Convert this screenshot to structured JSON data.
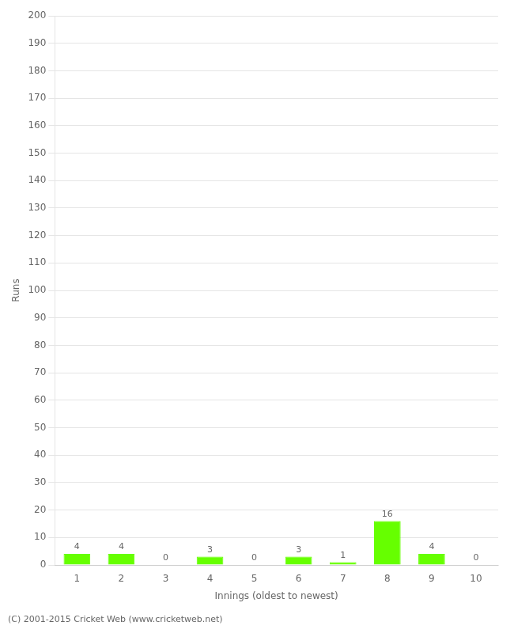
{
  "chart_data": {
    "type": "bar",
    "xlabel": "Innings (oldest to newest)",
    "ylabel": "Runs",
    "categories": [
      "1",
      "2",
      "3",
      "4",
      "5",
      "6",
      "7",
      "8",
      "9",
      "10"
    ],
    "values": [
      4,
      4,
      0,
      3,
      0,
      3,
      1,
      16,
      4,
      0
    ],
    "color": "#66ff00",
    "ylim": [
      0,
      200
    ],
    "yticks": [
      0,
      10,
      20,
      30,
      40,
      50,
      60,
      70,
      80,
      90,
      100,
      110,
      120,
      130,
      140,
      150,
      160,
      170,
      180,
      190,
      200
    ],
    "grid": true,
    "data_labels": true,
    "annotations": [
      "(C) 2001-2015 Cricket Web (www.cricketweb.net)"
    ]
  }
}
